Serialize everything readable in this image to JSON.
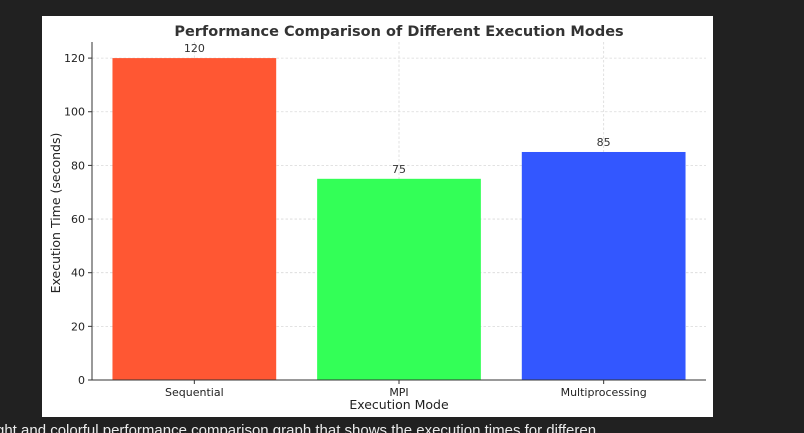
{
  "chart_data": {
    "type": "bar",
    "title": "Performance Comparison of Different Execution Modes",
    "xlabel": "Execution Mode",
    "ylabel": "Execution Time (seconds)",
    "categories": [
      "Sequential",
      "MPI",
      "Multiprocessing"
    ],
    "values": [
      120,
      75,
      85
    ],
    "value_labels": [
      "120",
      "75",
      "85"
    ],
    "colors": [
      "#ff5733",
      "#33ff57",
      "#3357ff"
    ],
    "ylim": [
      0,
      126
    ],
    "yticks": [
      0,
      20,
      40,
      60,
      80,
      100,
      120
    ],
    "grid": true,
    "legend": "none"
  },
  "caption": {
    "text": "ght and colorful performance comparison graph that shows the execution times for differen"
  }
}
